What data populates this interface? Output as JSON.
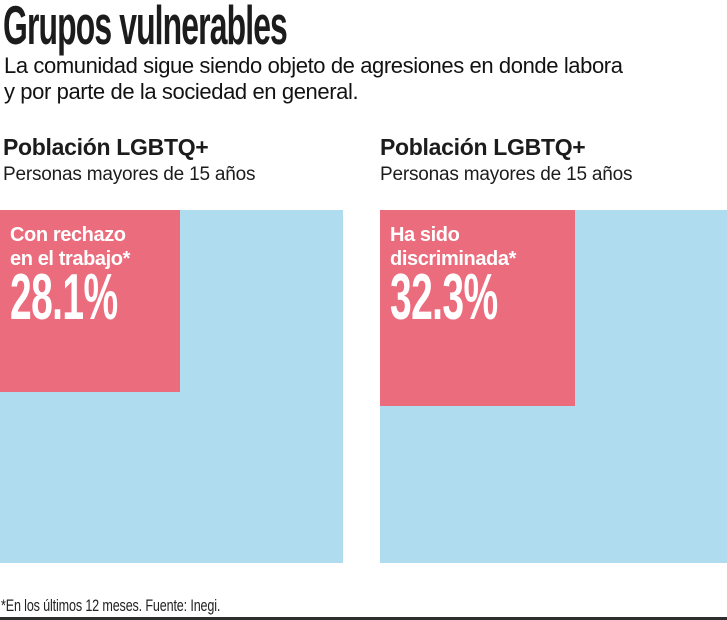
{
  "header": {
    "title": "Grupos vulnerables",
    "subtitle_line1": "La comunidad sigue siendo objeto de agresiones en donde labora",
    "subtitle_line2": "y por parte de la sociedad en general."
  },
  "panels": [
    {
      "title": "Población LGBTQ+",
      "subtitle": "Personas mayores de 15 años",
      "label_line1": "Con rechazo",
      "label_line2": "en el trabajo*",
      "value_label": "28.1%"
    },
    {
      "title": "Población LGBTQ+",
      "subtitle": "Personas mayores de 15 años",
      "label_line1": "Ha sido",
      "label_line2": "discriminada*",
      "value_label": "32.3%"
    }
  ],
  "footer": {
    "note": "*En los últimos 12 meses. Fuente: Inegi."
  },
  "colors": {
    "highlight_pink": "#EB6C7C",
    "base_blue": "#AFDCEF",
    "text_dark": "#1C1C1C",
    "rule_dark": "#2E2E2E"
  },
  "chart_data": [
    {
      "type": "area",
      "variant": "proportional-square",
      "title": "Población LGBTQ+",
      "subtitle": "Personas mayores de 15 años",
      "categories": [
        "Con rechazo en el trabajo*"
      ],
      "values": [
        28.1
      ],
      "reference_total": 100,
      "unit": "%",
      "legend_position": "none",
      "grid": false
    },
    {
      "type": "area",
      "variant": "proportional-square",
      "title": "Población LGBTQ+",
      "subtitle": "Personas mayores de 15 años",
      "categories": [
        "Ha sido discriminada*"
      ],
      "values": [
        32.3
      ],
      "reference_total": 100,
      "unit": "%",
      "legend_position": "none",
      "grid": false
    }
  ]
}
